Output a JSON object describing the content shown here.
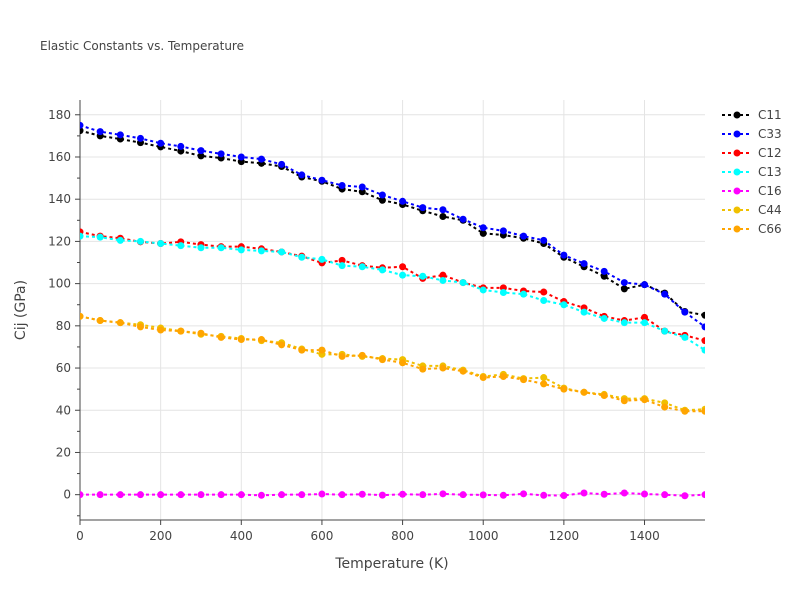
{
  "chart_data": {
    "type": "line",
    "title": "Elastic Constants vs. Temperature",
    "xlabel": "Temperature (K)",
    "ylabel": "Cij (GPa)",
    "xlim": [
      0,
      1550
    ],
    "ylim": [
      -12,
      187
    ],
    "xticks": [
      0,
      200,
      400,
      600,
      800,
      1000,
      1200,
      1400
    ],
    "yticks": [
      0,
      20,
      40,
      60,
      80,
      100,
      120,
      140,
      160,
      180
    ],
    "grid": true,
    "legend_position": "right",
    "x": [
      0,
      50,
      100,
      150,
      200,
      250,
      300,
      350,
      400,
      450,
      500,
      550,
      600,
      650,
      700,
      750,
      800,
      850,
      900,
      950,
      1000,
      1050,
      1100,
      1150,
      1200,
      1250,
      1300,
      1350,
      1400,
      1450,
      1500,
      1550
    ],
    "series": [
      {
        "name": "C11",
        "color": "#000000",
        "values": [
          172.5,
          170,
          168.5,
          166.8,
          164.8,
          162.8,
          160.5,
          159.5,
          157.8,
          157,
          155.5,
          150.5,
          148.5,
          144.8,
          143.5,
          139.5,
          137.5,
          134.5,
          131.8,
          130,
          123.8,
          123,
          121.5,
          119,
          112.5,
          108,
          103.5,
          97.5,
          99.5,
          95.5,
          86.8,
          85
        ]
      },
      {
        "name": "C33",
        "color": "#0000ff",
        "values": [
          175,
          172,
          170.5,
          168.8,
          166.5,
          165,
          163,
          161.5,
          160,
          159,
          156.5,
          151.5,
          149,
          146.5,
          145.8,
          142,
          139,
          136,
          135,
          130.5,
          126.5,
          125,
          122.5,
          120.5,
          113.5,
          109.5,
          105.8,
          100.5,
          99.5,
          95,
          86.5,
          79.5
        ]
      },
      {
        "name": "C12",
        "color": "#ff0000",
        "values": [
          124.5,
          122.5,
          121.5,
          119.8,
          119,
          119.8,
          118.5,
          117.5,
          117.5,
          116.5,
          115,
          113,
          109.8,
          111,
          108.5,
          107.5,
          108,
          102.5,
          104,
          100.5,
          98,
          98,
          96.5,
          96,
          91.5,
          88.5,
          84.5,
          82.5,
          84,
          77.5,
          75.5,
          73
        ]
      },
      {
        "name": "C13",
        "color": "#00ffff",
        "values": [
          122.5,
          122,
          120.5,
          120,
          119,
          118,
          117,
          117,
          116,
          115.5,
          115,
          112.5,
          111.5,
          108.5,
          108,
          106.5,
          104,
          103.5,
          101.5,
          100.5,
          97,
          95.8,
          95,
          92,
          90,
          86.5,
          83.5,
          81.5,
          81.5,
          77.5,
          74.5,
          68.5
        ]
      },
      {
        "name": "C16",
        "color": "#ff00ff",
        "values": [
          0,
          0,
          0,
          0,
          0,
          0,
          0,
          0,
          0,
          -0.3,
          0,
          0,
          0.3,
          0,
          0.2,
          -0.2,
          0.2,
          0,
          0.4,
          0,
          -0.1,
          -0.3,
          0.4,
          -0.3,
          -0.4,
          0.8,
          0.2,
          0.8,
          0.3,
          0,
          -0.5,
          0
        ]
      },
      {
        "name": "C44",
        "color": "#f0c000",
        "values": [
          84.5,
          82.5,
          81.5,
          80.5,
          79,
          77.5,
          76,
          75,
          74,
          73,
          72,
          69,
          66.5,
          66.5,
          65.5,
          64.5,
          64,
          61,
          61,
          59,
          56,
          57,
          55,
          55.5,
          50.5,
          48.5,
          47.5,
          45.5,
          45.5,
          43.5,
          40,
          40.5
        ]
      },
      {
        "name": "C66",
        "color": "#ffa500",
        "values": [
          84.5,
          82.5,
          81.5,
          79.5,
          78,
          77.5,
          76.5,
          74.5,
          73.5,
          73.5,
          71,
          68.5,
          68.5,
          65.5,
          66,
          64,
          62.5,
          59.5,
          60,
          58.5,
          55.5,
          56,
          54.5,
          52.5,
          50,
          48.5,
          47,
          44.5,
          45,
          41.5,
          39.5,
          39.5
        ]
      }
    ]
  }
}
